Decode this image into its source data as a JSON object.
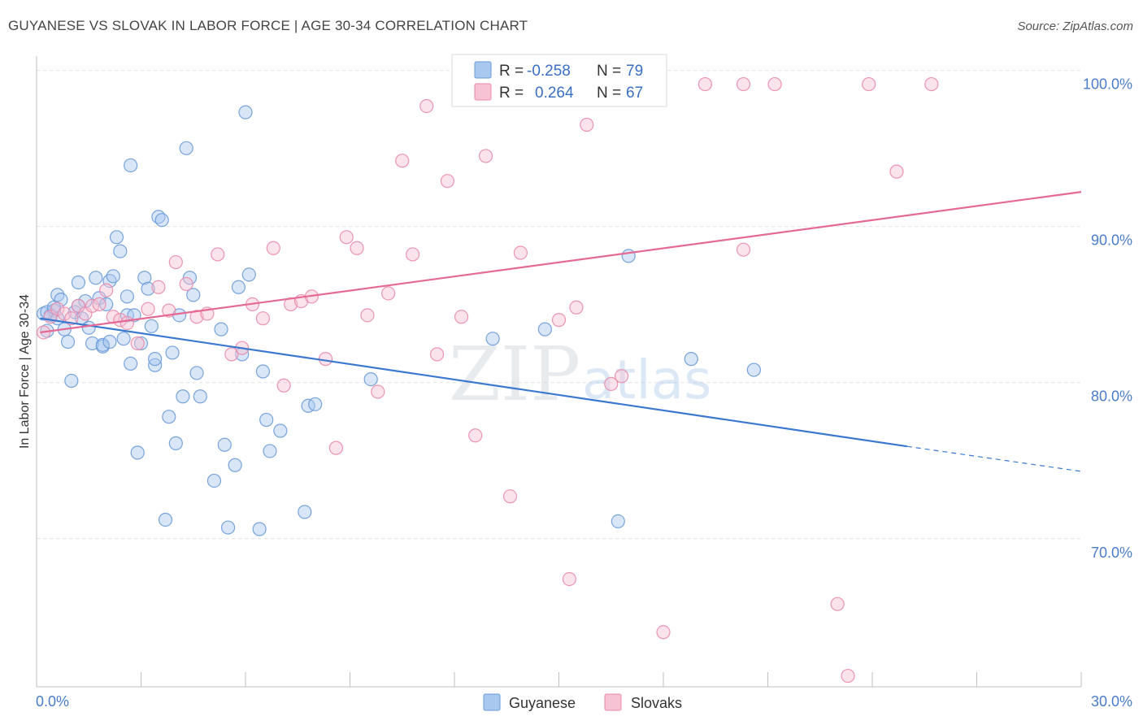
{
  "title": "GUYANESE VS SLOVAK IN LABOR FORCE | AGE 30-34 CORRELATION CHART",
  "source": "Source: ZipAtlas.com",
  "watermark": {
    "zip": "ZIP",
    "atlas": "atlas"
  },
  "legend": {
    "rows": [
      {
        "r_label": "R = ",
        "r_value": "-0.258",
        "n_label": "N = ",
        "n_value": "79",
        "color": "#a9c8f0",
        "stroke": "#6a9ad8"
      },
      {
        "r_label": "R = ",
        "r_value": "0.264",
        "n_label": "N = ",
        "n_value": "67",
        "color": "#f7c2d3",
        "stroke": "#e98aab"
      }
    ]
  },
  "bottom_legend": [
    {
      "label": "Guyanese",
      "color": "#a9c8f0",
      "stroke": "#6a9ad8"
    },
    {
      "label": "Slovaks",
      "color": "#f7c2d3",
      "stroke": "#e98aab"
    }
  ],
  "chart_data": {
    "type": "scatter",
    "title": "GUYANESE VS SLOVAK IN LABOR FORCE | AGE 30-34 CORRELATION CHART",
    "ylabel": "In Labor Force | Age 30-34",
    "xlabel": "",
    "xlim": [
      0,
      30
    ],
    "ylim": [
      61.4,
      101.8
    ],
    "x_tick_labels": [
      {
        "value": 0,
        "label": "0.0%"
      },
      {
        "value": 30,
        "label": "30.0%"
      }
    ],
    "y_tick_labels": [
      {
        "value": 100,
        "label": "100.0%"
      },
      {
        "value": 90,
        "label": "90.0%"
      },
      {
        "value": 80,
        "label": "80.0%"
      },
      {
        "value": 70,
        "label": "70.0%"
      }
    ],
    "grid": true,
    "legend_position": "top-center",
    "series": [
      {
        "name": "Guyanese",
        "color": "#a9c8f0",
        "stroke": "#6a9ad8",
        "trend": {
          "x": [
            0.1,
            25.0
          ],
          "y": [
            85.0,
            76.8
          ],
          "dashed_to_x": 30,
          "dashed_to_y": 75.2,
          "color": "#3a78d0"
        },
        "points": [
          [
            0.2,
            85.3
          ],
          [
            0.3,
            84.2
          ],
          [
            0.4,
            85.2
          ],
          [
            0.5,
            85.5
          ],
          [
            0.6,
            86.5
          ],
          [
            0.6,
            85.0
          ],
          [
            0.7,
            86.2
          ],
          [
            0.8,
            84.3
          ],
          [
            0.9,
            83.5
          ],
          [
            1.0,
            81.0
          ],
          [
            1.1,
            85.4
          ],
          [
            1.2,
            85.8
          ],
          [
            1.2,
            87.3
          ],
          [
            1.3,
            85.0
          ],
          [
            1.4,
            86.1
          ],
          [
            1.5,
            84.4
          ],
          [
            1.6,
            83.4
          ],
          [
            1.7,
            87.6
          ],
          [
            1.8,
            86.3
          ],
          [
            1.9,
            83.2
          ],
          [
            1.9,
            83.3
          ],
          [
            2.0,
            85.9
          ],
          [
            2.1,
            83.5
          ],
          [
            2.1,
            87.4
          ],
          [
            2.2,
            87.7
          ],
          [
            2.3,
            90.2
          ],
          [
            2.4,
            89.3
          ],
          [
            2.5,
            83.7
          ],
          [
            2.6,
            86.4
          ],
          [
            2.6,
            85.2
          ],
          [
            2.7,
            94.8
          ],
          [
            2.7,
            82.1
          ],
          [
            3.0,
            83.4
          ],
          [
            3.1,
            87.6
          ],
          [
            3.2,
            86.9
          ],
          [
            3.3,
            84.5
          ],
          [
            3.4,
            82.0
          ],
          [
            3.4,
            82.4
          ],
          [
            3.5,
            91.5
          ],
          [
            3.6,
            91.3
          ],
          [
            3.8,
            78.7
          ],
          [
            3.9,
            82.8
          ],
          [
            4.0,
            77.0
          ],
          [
            4.1,
            85.2
          ],
          [
            4.2,
            80.0
          ],
          [
            4.3,
            95.9
          ],
          [
            4.5,
            86.5
          ],
          [
            4.4,
            87.6
          ],
          [
            4.6,
            81.5
          ],
          [
            4.7,
            80.0
          ],
          [
            5.1,
            74.6
          ],
          [
            5.3,
            84.3
          ],
          [
            5.4,
            76.9
          ],
          [
            5.5,
            71.6
          ],
          [
            5.7,
            75.6
          ],
          [
            5.8,
            87.0
          ],
          [
            5.9,
            82.7
          ],
          [
            6.0,
            98.2
          ],
          [
            6.1,
            87.8
          ],
          [
            6.4,
            71.5
          ],
          [
            6.5,
            81.6
          ],
          [
            6.6,
            78.5
          ],
          [
            6.7,
            76.5
          ],
          [
            7.0,
            77.8
          ],
          [
            7.7,
            72.6
          ],
          [
            7.8,
            79.4
          ],
          [
            8.0,
            79.5
          ],
          [
            9.6,
            81.1
          ],
          [
            13.1,
            83.7
          ],
          [
            14.6,
            84.3
          ],
          [
            16.7,
            72.0
          ],
          [
            17.0,
            89.0
          ],
          [
            18.8,
            82.4
          ],
          [
            20.6,
            81.7
          ],
          [
            0.3,
            85.4
          ],
          [
            0.5,
            85.7
          ],
          [
            2.8,
            85.2
          ],
          [
            3.7,
            72.1
          ],
          [
            2.9,
            76.4
          ]
        ]
      },
      {
        "name": "Slovaks",
        "color": "#f7c2d3",
        "stroke": "#e98aab",
        "trend": {
          "x": [
            0.1,
            30.0
          ],
          "y": [
            84.1,
            93.1
          ],
          "color": "#e46a94"
        },
        "points": [
          [
            0.2,
            84.1
          ],
          [
            0.4,
            85.1
          ],
          [
            0.6,
            85.6
          ],
          [
            0.8,
            85.3
          ],
          [
            1.0,
            85.0
          ],
          [
            1.2,
            85.8
          ],
          [
            1.4,
            85.3
          ],
          [
            1.6,
            85.8
          ],
          [
            1.8,
            85.9
          ],
          [
            2.0,
            86.8
          ],
          [
            2.2,
            85.1
          ],
          [
            2.4,
            84.9
          ],
          [
            2.6,
            84.7
          ],
          [
            2.9,
            83.4
          ],
          [
            3.2,
            85.6
          ],
          [
            3.5,
            87.0
          ],
          [
            3.8,
            85.5
          ],
          [
            4.0,
            88.6
          ],
          [
            4.3,
            87.2
          ],
          [
            4.6,
            85.1
          ],
          [
            4.9,
            85.3
          ],
          [
            5.2,
            89.1
          ],
          [
            5.6,
            82.7
          ],
          [
            5.9,
            83.1
          ],
          [
            6.2,
            85.9
          ],
          [
            6.5,
            85.0
          ],
          [
            6.8,
            89.5
          ],
          [
            7.1,
            80.7
          ],
          [
            7.3,
            85.9
          ],
          [
            7.6,
            86.1
          ],
          [
            7.9,
            86.4
          ],
          [
            8.3,
            82.4
          ],
          [
            8.6,
            76.7
          ],
          [
            8.9,
            90.2
          ],
          [
            9.2,
            89.5
          ],
          [
            9.5,
            85.2
          ],
          [
            9.8,
            80.3
          ],
          [
            10.1,
            86.6
          ],
          [
            10.5,
            95.1
          ],
          [
            10.8,
            89.1
          ],
          [
            11.2,
            98.6
          ],
          [
            11.5,
            82.7
          ],
          [
            11.8,
            93.8
          ],
          [
            12.2,
            85.1
          ],
          [
            12.6,
            77.5
          ],
          [
            12.9,
            95.4
          ],
          [
            13.3,
            100.0
          ],
          [
            13.6,
            73.6
          ],
          [
            13.9,
            89.2
          ],
          [
            14.3,
            100.0
          ],
          [
            15.0,
            84.9
          ],
          [
            15.3,
            68.3
          ],
          [
            15.5,
            85.7
          ],
          [
            15.8,
            97.4
          ],
          [
            16.1,
            100.0
          ],
          [
            16.5,
            80.8
          ],
          [
            16.8,
            81.3
          ],
          [
            18.0,
            64.9
          ],
          [
            19.2,
            100.0
          ],
          [
            20.3,
            100.0
          ],
          [
            20.3,
            89.4
          ],
          [
            21.2,
            100.0
          ],
          [
            23.0,
            66.7
          ],
          [
            23.3,
            62.1
          ],
          [
            23.9,
            100.0
          ],
          [
            24.7,
            94.4
          ],
          [
            25.7,
            100.0
          ]
        ]
      }
    ]
  }
}
